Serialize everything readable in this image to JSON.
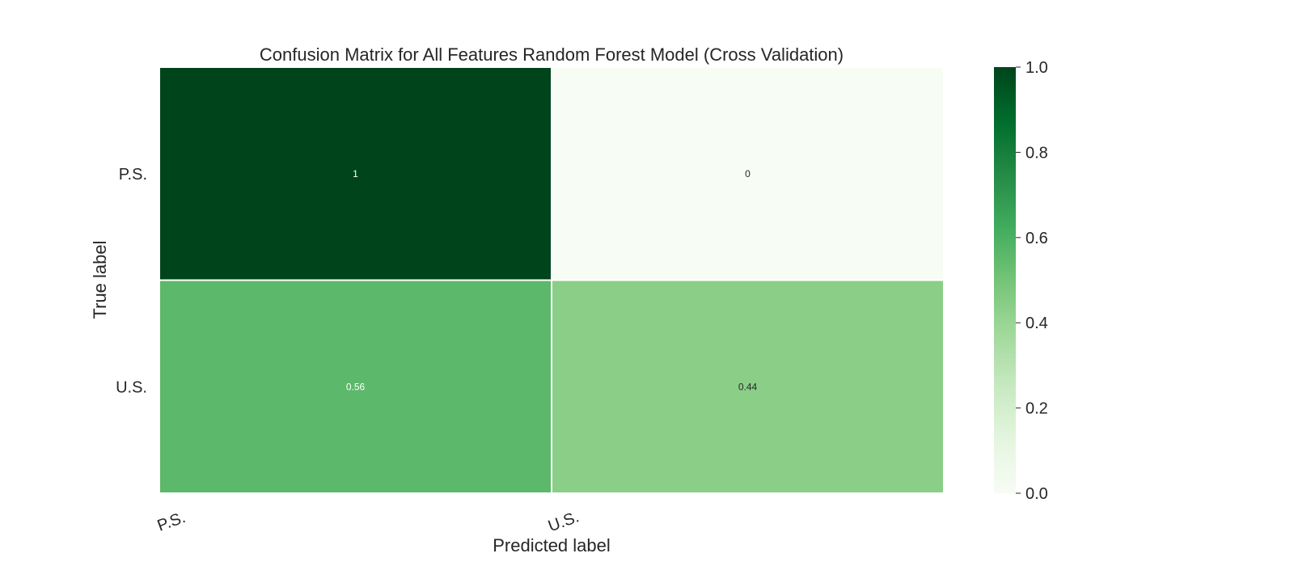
{
  "chart_data": {
    "type": "heatmap",
    "title": "Confusion Matrix for All Features Random Forest Model (Cross Validation)",
    "xlabel": "Predicted label",
    "ylabel": "True label",
    "x_categories": [
      "P.S.",
      "U.S."
    ],
    "y_categories": [
      "P.S.",
      "U.S."
    ],
    "values": [
      [
        1,
        0
      ],
      [
        0.56,
        0.44
      ]
    ],
    "cell_labels": [
      [
        "1",
        "0"
      ],
      [
        "0.56",
        "0.44"
      ]
    ],
    "colormap": "Greens",
    "colorbar": {
      "range": [
        0,
        1
      ],
      "ticks": [
        0,
        0.2,
        0.4,
        0.6,
        0.8,
        1
      ],
      "tick_labels": [
        "0.0",
        "0.2",
        "0.4",
        "0.6",
        "0.8",
        "1.0"
      ]
    },
    "grid": false,
    "cell_separator_color": "#ffffff"
  }
}
